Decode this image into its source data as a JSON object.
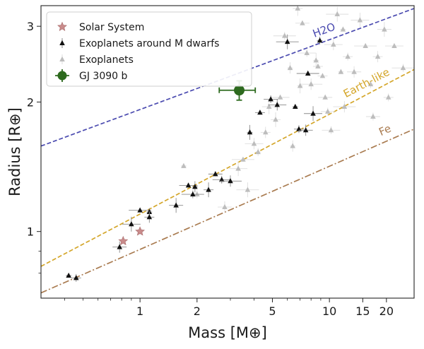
{
  "chart_data": {
    "type": "scatter",
    "title": "",
    "xlabel": "Mass [M⊕]",
    "ylabel": "Radius [R⊕]",
    "xscale": "log",
    "yscale": "log",
    "xlim": [
      0.3,
      28
    ],
    "ylim": [
      0.7,
      3.35
    ],
    "grid": false,
    "legend_position": "top-left",
    "x_ticks": [
      1,
      2,
      5,
      10,
      15,
      20
    ],
    "x_tick_labels": [
      "1",
      "2",
      "5",
      "10",
      "15",
      "20"
    ],
    "y_ticks": [
      1,
      2,
      3
    ],
    "y_tick_labels": [
      "1",
      "2",
      "3"
    ],
    "legend": [
      {
        "label": "Solar System",
        "marker": "star",
        "color": "#c98b8b"
      },
      {
        "label": "Exoplanets around M dwarfs",
        "marker": "triangle",
        "color": "#111111"
      },
      {
        "label": "Exoplanets",
        "marker": "triangle",
        "color": "#bdbdbd"
      },
      {
        "label": "GJ 3090 b",
        "marker": "circle",
        "color": "#2d6a1e"
      }
    ],
    "curves": [
      {
        "label": "H2O",
        "color": "#4b4bb0",
        "style": "dashed",
        "y_at_x_min": 1.58,
        "y_at_x_max": 3.3,
        "label_x": 9.5
      },
      {
        "label": "Earth-like",
        "color": "#d4a62a",
        "style": "dashed",
        "y_at_x_min": 0.83,
        "y_at_x_max": 2.38,
        "label_x": 16
      },
      {
        "label": "Fe",
        "color": "#a97b50",
        "style": "dashdot",
        "y_at_x_min": 0.72,
        "y_at_x_max": 1.73,
        "label_x": 20
      }
    ],
    "series": [
      {
        "name": "Solar System",
        "marker": "star",
        "color": "#c98b8b",
        "points": [
          [
            0.815,
            0.95
          ],
          [
            1.0,
            1.0
          ]
        ]
      },
      {
        "name": "Exoplanets around M dwarfs",
        "marker": "triangle",
        "color": "#111111",
        "points": [
          [
            0.42,
            0.79
          ],
          [
            0.46,
            0.78
          ],
          [
            0.78,
            0.92
          ],
          [
            0.9,
            1.04
          ],
          [
            1.0,
            1.12
          ],
          [
            1.12,
            1.11
          ],
          [
            1.12,
            1.08
          ],
          [
            1.55,
            1.15
          ],
          [
            1.8,
            1.28
          ],
          [
            1.9,
            1.22
          ],
          [
            1.95,
            1.27
          ],
          [
            2.3,
            1.25
          ],
          [
            2.5,
            1.36
          ],
          [
            2.7,
            1.32
          ],
          [
            3.0,
            1.31
          ],
          [
            3.8,
            1.7
          ],
          [
            4.3,
            1.89
          ],
          [
            4.9,
            2.03
          ],
          [
            5.3,
            1.97
          ],
          [
            6.0,
            2.76
          ],
          [
            6.6,
            1.95
          ],
          [
            6.9,
            1.73
          ],
          [
            7.5,
            1.72
          ],
          [
            8.2,
            1.88
          ],
          [
            7.7,
            2.33
          ],
          [
            8.9,
            2.78
          ]
        ]
      },
      {
        "name": "Exoplanets",
        "marker": "triangle",
        "color": "#bdbdbd",
        "points": [
          [
            1.7,
            1.42
          ],
          [
            2.0,
            1.22
          ],
          [
            2.8,
            1.14
          ],
          [
            3.3,
            1.4
          ],
          [
            3.5,
            1.47
          ],
          [
            4.2,
            1.53
          ],
          [
            4.6,
            1.7
          ],
          [
            4.8,
            1.95
          ],
          [
            5.5,
            2.05
          ],
          [
            5.8,
            2.85
          ],
          [
            6.2,
            2.4
          ],
          [
            6.8,
            3.3
          ],
          [
            7.2,
            3.05
          ],
          [
            7.6,
            2.6
          ],
          [
            8.0,
            2.2
          ],
          [
            8.5,
            2.5
          ],
          [
            9.2,
            2.3
          ],
          [
            9.8,
            1.9
          ],
          [
            10.5,
            2.72
          ],
          [
            11.0,
            3.2
          ],
          [
            11.8,
            2.95
          ],
          [
            12.5,
            2.55
          ],
          [
            13.5,
            2.35
          ],
          [
            14.5,
            3.1
          ],
          [
            15.5,
            2.7
          ],
          [
            16.5,
            2.2
          ],
          [
            18.0,
            2.55
          ],
          [
            19.5,
            2.95
          ],
          [
            22.0,
            2.7
          ],
          [
            24.5,
            2.4
          ],
          [
            6.4,
            1.58
          ],
          [
            5.2,
            1.82
          ],
          [
            9.5,
            2.05
          ],
          [
            10.2,
            1.72
          ],
          [
            12.0,
            1.95
          ],
          [
            7.0,
            2.18
          ],
          [
            8.7,
            2.42
          ],
          [
            17.0,
            1.85
          ],
          [
            4.0,
            1.6
          ],
          [
            3.7,
            1.25
          ],
          [
            11.5,
            2.35
          ],
          [
            20.5,
            2.05
          ]
        ]
      },
      {
        "name": "GJ 3090 b",
        "marker": "circle",
        "color": "#2d6a1e",
        "points": [
          [
            3.34,
            2.13
          ]
        ],
        "xerr": [
          0.72,
          0.72
        ],
        "yerr": [
          0.11,
          0.11
        ]
      }
    ]
  }
}
